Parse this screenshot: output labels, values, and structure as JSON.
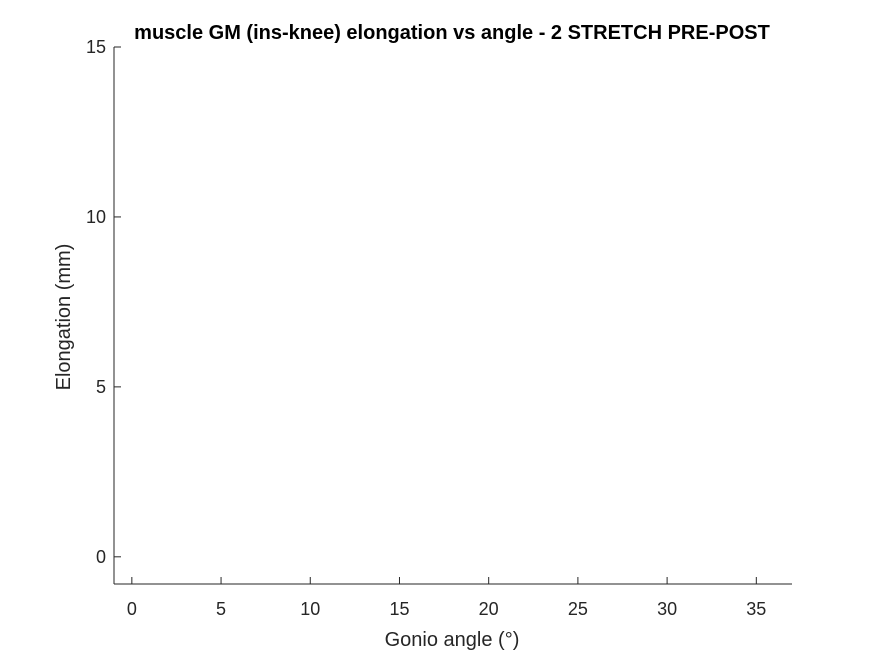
{
  "chart_data": {
    "type": "line",
    "title": "muscle GM (ins-knee) elongation vs angle - 2 STRETCH PRE-POST",
    "xlabel": "Gonio angle (°)",
    "ylabel": "Elongation (mm)",
    "xlim": [
      -1,
      37
    ],
    "ylim": [
      -0.8,
      15
    ],
    "xticks": [
      0,
      5,
      10,
      15,
      20,
      25,
      30,
      35
    ],
    "yticks": [
      0,
      5,
      10,
      15
    ],
    "xtick_labels": [
      "0",
      "5",
      "10",
      "15",
      "20",
      "25",
      "30",
      "35"
    ],
    "ytick_labels": [
      "0",
      "5",
      "10",
      "15"
    ],
    "series": [],
    "grid": false,
    "axis_color": "#262626",
    "title_color": "#000000",
    "background": "#ffffff"
  }
}
